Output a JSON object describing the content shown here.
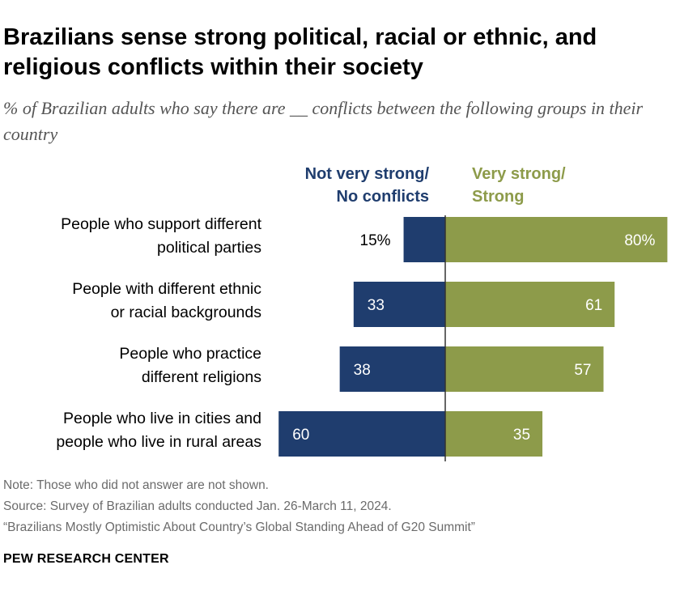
{
  "title": "Brazilians sense strong political, racial or ethnic, and religious conflicts within their society",
  "subtitle": "% of Brazilian adults who say there are __ conflicts between the following groups in their country",
  "legend": {
    "negative": [
      "Not very strong/",
      "No conflicts"
    ],
    "positive": [
      "Very strong/",
      "Strong"
    ]
  },
  "colors": {
    "negative": "#1f3d6e",
    "positive": "#8d9b4a",
    "axis": "#333333"
  },
  "chart_data": {
    "type": "bar",
    "orientation": "horizontal-diverging",
    "categories": [
      [
        "People who support different",
        "political parties"
      ],
      [
        "People with different ethnic",
        "or racial backgrounds"
      ],
      [
        "People who practice",
        "different religions"
      ],
      [
        "People who live in cities and",
        "people who live in rural areas"
      ]
    ],
    "series": [
      {
        "name": "Not very strong/No conflicts",
        "values": [
          15,
          33,
          38,
          60
        ],
        "labels": [
          "15%",
          "33",
          "38",
          "60"
        ]
      },
      {
        "name": "Very strong/Strong",
        "values": [
          80,
          61,
          57,
          35
        ],
        "labels": [
          "80%",
          "61",
          "57",
          "35"
        ]
      }
    ],
    "xlim": [
      -60,
      80
    ]
  },
  "footer": {
    "note": "Note: Those who did not answer are not shown.",
    "source": "Source: Survey of Brazilian adults conducted Jan. 26-March 11, 2024.",
    "report": "“Brazilians Mostly Optimistic About Country’s Global Standing Ahead of G20 Summit”",
    "brand": "PEW RESEARCH CENTER"
  }
}
